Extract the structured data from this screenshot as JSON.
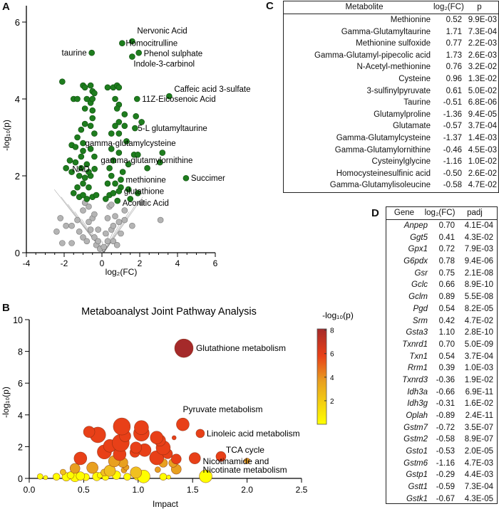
{
  "panels": {
    "a": "A",
    "b": "B",
    "c": "C",
    "d": "D"
  },
  "chart_data": [
    {
      "type": "scatter",
      "xlabel": "log₂(FC)",
      "ylabel": "-log₁₀(p)",
      "xlim": [
        -4,
        6
      ],
      "ylim": [
        0,
        6.4
      ],
      "xticks": [
        -4,
        -2,
        0,
        2,
        4,
        6
      ],
      "yticks": [
        0,
        2,
        4,
        6
      ],
      "colors": {
        "significant": "#1e7d1e",
        "not_significant": "#b4b4b4"
      },
      "labeled_points": [
        {
          "label": "Nervonic Acid",
          "x": 1.6,
          "y": 5.5
        },
        {
          "label": "Homocitrulline",
          "x": 1.07,
          "y": 5.45
        },
        {
          "label": "taurine",
          "x": -0.54,
          "y": 5.2
        },
        {
          "label": "Phenol sulphate",
          "x": 1.95,
          "y": 5.2
        },
        {
          "label": "Indole-3-carbinol",
          "x": 1.6,
          "y": 5.1
        },
        {
          "label": "Caffeic acid 3-sulfate",
          "x": 3.56,
          "y": 4.07
        },
        {
          "label": "11Z-Eicosenoic Acid",
          "x": 1.86,
          "y": 4.0
        },
        {
          "label": "5-L glutamyltaurine",
          "x": 1.75,
          "y": 3.24
        },
        {
          "label": "gamma-glutamylcysteine",
          "x": -1.0,
          "y": 2.85
        },
        {
          "label": "gamma-glutamylornithine",
          "x": 3.07,
          "y": 2.35
        },
        {
          "label": "NAD",
          "x": -0.39,
          "y": 2.18
        },
        {
          "label": "methionine",
          "x": 1.0,
          "y": 1.9
        },
        {
          "label": "Succimer",
          "x": 4.45,
          "y": 1.94
        },
        {
          "label": "glutathione",
          "x": 0.9,
          "y": 1.6
        },
        {
          "label": "Aconitic Acid",
          "x": 0.82,
          "y": 1.35
        }
      ],
      "significant_points": [
        [
          -2.1,
          4.45
        ],
        [
          -1.5,
          4.0
        ],
        [
          -1.3,
          4.0
        ],
        [
          -1.0,
          4.35
        ],
        [
          -0.9,
          4.3
        ],
        [
          -0.6,
          4.35
        ],
        [
          -0.5,
          4.2
        ],
        [
          -0.4,
          4.15
        ],
        [
          -0.8,
          4.0
        ],
        [
          -0.6,
          3.9
        ],
        [
          -0.5,
          4.0
        ],
        [
          -0.9,
          3.75
        ],
        [
          -0.5,
          3.7
        ],
        [
          -0.5,
          3.5
        ],
        [
          -0.6,
          3.3
        ],
        [
          -0.9,
          3.35
        ],
        [
          -1.1,
          3.2
        ],
        [
          -0.4,
          3.1
        ],
        [
          -1.3,
          3.0
        ],
        [
          -1.6,
          2.8
        ],
        [
          -1.4,
          2.75
        ],
        [
          -1.0,
          2.65
        ],
        [
          -0.6,
          2.7
        ],
        [
          -0.4,
          2.5
        ],
        [
          -1.7,
          2.4
        ],
        [
          -1.4,
          2.35
        ],
        [
          -1.1,
          2.5
        ],
        [
          -1.9,
          2.2
        ],
        [
          -1.6,
          2.1
        ],
        [
          -1.2,
          2.0
        ],
        [
          -0.9,
          1.95
        ],
        [
          -0.6,
          2.0
        ],
        [
          -1.0,
          1.8
        ],
        [
          -0.7,
          1.7
        ],
        [
          -1.5,
          1.55
        ],
        [
          -1.2,
          1.45
        ],
        [
          -0.8,
          1.4
        ],
        [
          -0.5,
          1.45
        ],
        [
          -0.3,
          1.5
        ],
        [
          -1.1,
          2.2
        ],
        [
          -0.8,
          2.3
        ],
        [
          -1.3,
          1.7
        ],
        [
          -0.7,
          2.1
        ],
        [
          -1.0,
          1.5
        ],
        [
          0.3,
          4.3
        ],
        [
          0.6,
          4.3
        ],
        [
          0.8,
          4.35
        ],
        [
          0.9,
          4.3
        ],
        [
          0.7,
          4.0
        ],
        [
          0.9,
          3.85
        ],
        [
          0.8,
          3.75
        ],
        [
          1.2,
          3.6
        ],
        [
          1.8,
          3.55
        ],
        [
          2.1,
          3.4
        ],
        [
          0.9,
          3.4
        ],
        [
          0.7,
          3.3
        ],
        [
          1.2,
          3.3
        ],
        [
          0.9,
          3.1
        ],
        [
          0.5,
          3.1
        ],
        [
          1.3,
          2.9
        ],
        [
          0.5,
          2.7
        ],
        [
          0.9,
          2.6
        ],
        [
          1.7,
          2.55
        ],
        [
          1.9,
          2.55
        ],
        [
          3.2,
          2.6
        ],
        [
          0.6,
          2.4
        ],
        [
          1.4,
          2.3
        ],
        [
          2.4,
          2.2
        ],
        [
          0.5,
          2.0
        ],
        [
          1.1,
          2.1
        ],
        [
          0.3,
          1.8
        ],
        [
          1.0,
          1.7
        ],
        [
          1.4,
          1.65
        ],
        [
          1.9,
          1.55
        ],
        [
          0.4,
          1.5
        ],
        [
          0.6,
          1.55
        ],
        [
          1.5,
          1.4
        ],
        [
          0.2,
          1.4
        ],
        [
          0.4,
          2.2
        ],
        [
          0.7,
          1.8
        ]
      ],
      "nonsignificant_points": [
        [
          -2.1,
          0.25
        ],
        [
          -1.6,
          0.25
        ],
        [
          -2.4,
          0.55
        ],
        [
          -2.2,
          0.9
        ],
        [
          -1.9,
          0.7
        ],
        [
          -1.6,
          0.7
        ],
        [
          -1.3,
          0.85
        ],
        [
          -1.0,
          1.1
        ],
        [
          -0.7,
          1.2
        ],
        [
          -1.2,
          0.55
        ],
        [
          -1.0,
          0.4
        ],
        [
          -0.8,
          0.3
        ],
        [
          -0.6,
          0.6
        ],
        [
          -0.5,
          0.9
        ],
        [
          -0.4,
          0.4
        ],
        [
          -0.3,
          0.2
        ],
        [
          -0.2,
          0.6
        ],
        [
          -0.1,
          0.1
        ],
        [
          0.1,
          0.15
        ],
        [
          0.2,
          0.5
        ],
        [
          0.3,
          0.9
        ],
        [
          0.4,
          1.2
        ],
        [
          0.5,
          0.6
        ],
        [
          0.6,
          0.3
        ],
        [
          0.7,
          0.95
        ],
        [
          0.9,
          0.8
        ],
        [
          1.0,
          0.5
        ],
        [
          0.8,
          0.2
        ],
        [
          1.2,
          0.85
        ],
        [
          1.2,
          1.1
        ],
        [
          1.6,
          0.7
        ],
        [
          2.1,
          1.3
        ],
        [
          3.1,
          0.85
        ],
        [
          -0.9,
          1.3
        ],
        [
          0.5,
          1.25
        ],
        [
          -0.7,
          0.8
        ],
        [
          -0.4,
          1.0
        ],
        [
          0.3,
          0.3
        ],
        [
          -0.2,
          0.3
        ],
        [
          0.6,
          0.7
        ]
      ]
    },
    {
      "type": "scatter",
      "title": "Metaboanalyst Joint Pathway Analysis",
      "xlabel": "Impact",
      "ylabel": "-log₁₀(p)",
      "xlim": [
        0,
        2.5
      ],
      "ylim": [
        0,
        10
      ],
      "xticks": [
        "0.0",
        "0.5",
        "1.0",
        "1.5",
        "2.0",
        "2.5"
      ],
      "yticks": [
        0,
        2,
        4,
        6,
        8,
        10
      ],
      "colorbar": {
        "label": "-log₁₀(p)",
        "ticks": [
          2,
          4,
          6,
          8
        ],
        "colors": [
          "#ffff00",
          "#e8a020",
          "#e84018",
          "#a52a2a"
        ]
      },
      "labeled_points": [
        {
          "label": "Glutathione metabolism",
          "x": 1.42,
          "y": 8.2,
          "size": 13
        },
        {
          "label": "Pyruvate metabolism",
          "x": 1.41,
          "y": 3.4,
          "size": 9
        },
        {
          "label": "Linoleic acid metabolism",
          "x": 1.57,
          "y": 2.83,
          "size": 6
        },
        {
          "label": "TCA cycle",
          "x": 1.76,
          "y": 1.38,
          "size": 7
        },
        {
          "label": "Nicotinamide and",
          "label2": "Nicotinate metabolism",
          "x": 1.62,
          "y": 0.13,
          "size": 9
        }
      ],
      "points": [
        [
          2.0,
          1.1,
          4
        ],
        [
          0.85,
          3.27,
          12
        ],
        [
          1.03,
          3.2,
          10
        ],
        [
          1.03,
          2.84,
          11
        ],
        [
          0.55,
          2.93,
          8
        ],
        [
          0.63,
          2.74,
          11
        ],
        [
          0.88,
          2.67,
          8
        ],
        [
          0.84,
          2.24,
          12
        ],
        [
          0.74,
          2.05,
          9
        ],
        [
          0.69,
          1.67,
          10
        ],
        [
          0.83,
          1.52,
          9
        ],
        [
          0.98,
          1.94,
          8
        ],
        [
          1.06,
          1.78,
          9
        ],
        [
          0.97,
          1.64,
          7
        ],
        [
          1.17,
          2.57,
          9
        ],
        [
          1.2,
          2.39,
          8
        ],
        [
          1.23,
          1.93,
          10
        ],
        [
          1.17,
          1.3,
          10
        ],
        [
          1.27,
          1.55,
          7
        ],
        [
          1.35,
          1.22,
          7
        ],
        [
          1.33,
          2.56,
          3
        ],
        [
          1.52,
          1.27,
          8
        ],
        [
          0.47,
          1.26,
          9
        ],
        [
          0.78,
          1.08,
          8
        ],
        [
          0.86,
          1.0,
          7
        ],
        [
          1.23,
          0.97,
          6
        ],
        [
          1.32,
          0.97,
          6
        ],
        [
          1.35,
          0.58,
          7
        ],
        [
          0.58,
          0.67,
          8
        ],
        [
          0.42,
          0.63,
          7
        ],
        [
          0.89,
          0.7,
          4
        ],
        [
          0.87,
          0.52,
          4
        ],
        [
          1.18,
          0.55,
          4
        ],
        [
          0.31,
          0.4,
          4
        ],
        [
          0.74,
          0.48,
          8
        ],
        [
          0.98,
          0.37,
          8
        ],
        [
          0.69,
          0.37,
          5
        ],
        [
          0.1,
          0.12,
          4
        ],
        [
          0.15,
          0.05,
          3
        ],
        [
          0.25,
          0.1,
          5
        ],
        [
          0.34,
          0.1,
          6
        ],
        [
          0.38,
          0.2,
          5
        ],
        [
          0.42,
          0.1,
          7
        ],
        [
          0.47,
          0.15,
          6
        ],
        [
          0.52,
          0.08,
          5
        ],
        [
          0.62,
          0.12,
          6
        ],
        [
          0.65,
          0.2,
          4
        ],
        [
          0.7,
          0.1,
          5
        ],
        [
          0.8,
          0.2,
          6
        ],
        [
          0.9,
          0.1,
          5
        ],
        [
          0.99,
          0.12,
          5
        ],
        [
          1.05,
          0.12,
          9
        ],
        [
          1.23,
          0.1,
          5
        ],
        [
          1.28,
          0.08,
          3
        ]
      ]
    }
  ],
  "table_c": {
    "headers": [
      "Metabolite",
      "log₂(FC)",
      "p"
    ],
    "rows": [
      [
        "Methionine",
        "0.52",
        "9.9E-03"
      ],
      [
        "Gamma-Glutamyltaurine",
        "1.71",
        "7.3E-04"
      ],
      [
        "Methionine sulfoxide",
        "0.77",
        "2.2E-03"
      ],
      [
        "Gamma-Glutamyl-pipecolic acid",
        "1.73",
        "2.6E-03"
      ],
      [
        "N-Acetyl-methionine",
        "0.76",
        "3.2E-02"
      ],
      [
        "Cysteine",
        "0.96",
        "1.3E-02"
      ],
      [
        "3-sulfinylpyruvate",
        "0.61",
        "5.0E-02"
      ],
      [
        "Taurine",
        "-0.51",
        "6.8E-06"
      ],
      [
        "Glutamylproline",
        "-1.36",
        "9.4E-05"
      ],
      [
        "Glutamate",
        "-0.57",
        "3.7E-04"
      ],
      [
        "Gamma-Glutamylcysteine",
        "-1.37",
        "1.4E-03"
      ],
      [
        "Gamma-Glutamylornithine",
        "-0.46",
        "4.5E-03"
      ],
      [
        "Cysteinylglycine",
        "-1.16",
        "1.0E-02"
      ],
      [
        "Homocysteinesulfinic acid",
        "-0.50",
        "2.6E-02"
      ],
      [
        "Gamma-Glutamylisoleucine",
        "-0.58",
        "4.7E-02"
      ]
    ]
  },
  "table_d": {
    "headers": [
      "Gene",
      "log₂(FC)",
      "padj"
    ],
    "rows": [
      [
        "Anpep",
        "0.70",
        "4.1E-04"
      ],
      [
        "Ggt5",
        "0.41",
        "4.3E-02"
      ],
      [
        "Gpx1",
        "0.72",
        "7.9E-03"
      ],
      [
        "G6pdx",
        "0.78",
        "9.4E-06"
      ],
      [
        "Gsr",
        "0.75",
        "2.1E-08"
      ],
      [
        "Gclc",
        "0.66",
        "8.9E-10"
      ],
      [
        "Gclm",
        "0.89",
        "5.5E-08"
      ],
      [
        "Pgd",
        "0.54",
        "8.2E-05"
      ],
      [
        "Srm",
        "0.42",
        "4.7E-02"
      ],
      [
        "Gsta3",
        "1.10",
        "2.8E-10"
      ],
      [
        "Txnrd1",
        "0.70",
        "5.0E-09"
      ],
      [
        "Txn1",
        "0.54",
        "3.7E-04"
      ],
      [
        "Rrm1",
        "0.39",
        "1.0E-03"
      ],
      [
        "Txnrd3",
        "-0.36",
        "1.9E-02"
      ],
      [
        "Idh3a",
        "-0.66",
        "6.9E-11"
      ],
      [
        "Idh3g",
        "-0.31",
        "1.6E-02"
      ],
      [
        "Oplah",
        "-0.89",
        "2.4E-11"
      ],
      [
        "Gstm7",
        "-0.72",
        "3.5E-07"
      ],
      [
        "Gstm2",
        "-0.58",
        "8.9E-07"
      ],
      [
        "Gsto1",
        "-0.53",
        "2.0E-05"
      ],
      [
        "Gstm6",
        "-1.16",
        "4.7E-03"
      ],
      [
        "Gstp1",
        "-0.29",
        "4.4E-03"
      ],
      [
        "Gstt1",
        "-0.59",
        "7.3E-04"
      ],
      [
        "Gstk1",
        "-0.67",
        "4.3E-05"
      ]
    ]
  }
}
